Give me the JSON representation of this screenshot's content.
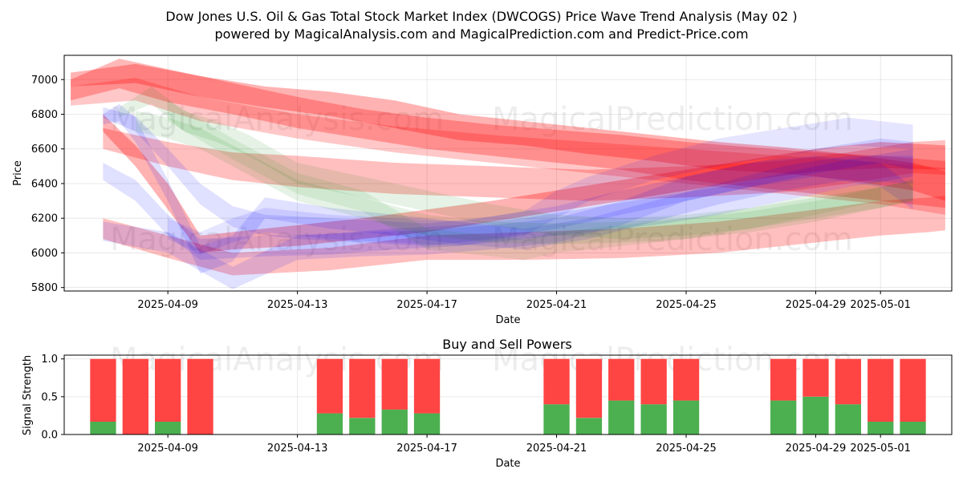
{
  "chart_data": [
    {
      "type": "area",
      "title": "Dow Jones U.S. Oil & Gas Total Stock Market Index (DWCOGS) Price Wave Trend Analysis (May 02 )",
      "subtitle": "powered by MagicalAnalysis.com and MagicalPrediction.com and Predict-Price.com",
      "xlabel": "Date",
      "ylabel": "Price",
      "x_tick_labels": [
        "2025-04-09",
        "2025-04-13",
        "2025-04-17",
        "2025-04-21",
        "2025-04-25",
        "2025-04-29",
        "2025-05-01"
      ],
      "x_tick_day_offsets": [
        2,
        6,
        10,
        14,
        18,
        22,
        24
      ],
      "xlim_days": [
        -1.2,
        26.2
      ],
      "ylim": [
        5780,
        7140
      ],
      "y_ticks": [
        5800,
        6000,
        6200,
        6400,
        6600,
        6800,
        7000
      ],
      "watermarks": [
        "MagicalAnalysis.com",
        "MagicalPrediction.com",
        "MagicalAnalysis.com",
        "MagicalPrediction.com"
      ],
      "series": [
        {
          "name": "red-1",
          "color": "#ff0000",
          "opacity": 0.28,
          "x": [
            -1,
            0.5,
            2,
            4,
            6,
            8,
            10,
            12,
            14,
            16,
            18,
            20,
            22,
            24,
            26
          ],
          "lower": [
            6880,
            6950,
            6870,
            6800,
            6720,
            6660,
            6600,
            6560,
            6520,
            6480,
            6420,
            6380,
            6340,
            6300,
            6260
          ],
          "upper": [
            7000,
            7120,
            7060,
            6980,
            6900,
            6830,
            6780,
            6740,
            6710,
            6680,
            6640,
            6610,
            6580,
            6560,
            6530
          ]
        },
        {
          "name": "red-2",
          "color": "#ff0000",
          "opacity": 0.3,
          "x": [
            -1,
            1,
            3,
            5,
            7,
            9,
            11,
            13,
            15,
            17,
            19,
            21,
            23,
            25,
            26
          ],
          "lower": [
            6960,
            6980,
            6900,
            6840,
            6790,
            6720,
            6650,
            6620,
            6570,
            6530,
            6480,
            6460,
            6420,
            6360,
            6300
          ],
          "upper": [
            7040,
            7090,
            7020,
            6960,
            6930,
            6880,
            6800,
            6760,
            6720,
            6680,
            6640,
            6610,
            6570,
            6520,
            6470
          ]
        },
        {
          "name": "red-3",
          "color": "#ff0000",
          "opacity": 0.22,
          "x": [
            -1,
            1,
            3,
            6,
            9,
            12,
            15,
            18,
            21,
            24,
            26
          ],
          "lower": [
            6850,
            6880,
            6760,
            6660,
            6580,
            6520,
            6460,
            6400,
            6340,
            6280,
            6220
          ],
          "upper": [
            6960,
            7010,
            6900,
            6800,
            6730,
            6680,
            6640,
            6600,
            6560,
            6520,
            6490
          ]
        },
        {
          "name": "red-4",
          "color": "#ff0000",
          "opacity": 0.25,
          "x": [
            0,
            2,
            4,
            6,
            9,
            12,
            15,
            18,
            21,
            23,
            25,
            26
          ],
          "lower": [
            6600,
            6500,
            6420,
            6380,
            6340,
            6320,
            6300,
            6320,
            6350,
            6400,
            6460,
            6450
          ],
          "upper": [
            6720,
            6640,
            6580,
            6560,
            6520,
            6500,
            6480,
            6500,
            6530,
            6580,
            6640,
            6650
          ]
        },
        {
          "name": "red-5",
          "color": "#ff0000",
          "opacity": 0.3,
          "x": [
            0,
            1,
            2,
            3,
            4,
            6,
            8,
            10,
            12,
            14,
            16,
            18,
            20,
            22,
            24,
            26
          ],
          "lower": [
            6700,
            6500,
            6250,
            6000,
            6020,
            6040,
            6080,
            6120,
            6180,
            6240,
            6300,
            6360,
            6420,
            6470,
            6490,
            6480
          ],
          "upper": [
            6800,
            6620,
            6400,
            6100,
            6120,
            6160,
            6200,
            6250,
            6300,
            6360,
            6420,
            6480,
            6540,
            6600,
            6640,
            6620
          ]
        },
        {
          "name": "red-6",
          "color": "#ff0000",
          "opacity": 0.25,
          "x": [
            0,
            2,
            4,
            7,
            10,
            13,
            16,
            19,
            22,
            24,
            25.5,
            26
          ],
          "lower": [
            6080,
            5970,
            5870,
            5900,
            5960,
            5960,
            5970,
            6000,
            6060,
            6100,
            6120,
            6130
          ],
          "upper": [
            6200,
            6100,
            6000,
            6030,
            6100,
            6120,
            6140,
            6180,
            6250,
            6300,
            6320,
            6330
          ]
        },
        {
          "name": "blue-1",
          "color": "#0000ff",
          "opacity": 0.12,
          "x": [
            0,
            0.5,
            1,
            2,
            3,
            4,
            5,
            7,
            9,
            11,
            13,
            15,
            17,
            19,
            21,
            23,
            24,
            25
          ],
          "lower": [
            6740,
            6760,
            6640,
            6300,
            5880,
            5950,
            6200,
            6140,
            6100,
            6050,
            6020,
            6080,
            6180,
            6280,
            6360,
            6420,
            6410,
            6400
          ],
          "upper": [
            6800,
            6860,
            6780,
            6420,
            6040,
            6100,
            6320,
            6260,
            6220,
            6180,
            6140,
            6200,
            6300,
            6400,
            6500,
            6560,
            6560,
            6560
          ]
        },
        {
          "name": "blue-2",
          "color": "#0000ff",
          "opacity": 0.12,
          "x": [
            0,
            1,
            2,
            3,
            5,
            7,
            9,
            11,
            13,
            15,
            17,
            19,
            21,
            23,
            25
          ],
          "lower": [
            6420,
            6300,
            6100,
            5960,
            5980,
            5990,
            6020,
            6040,
            6080,
            6120,
            6160,
            6220,
            6300,
            6380,
            6440
          ],
          "upper": [
            6520,
            6420,
            6220,
            6080,
            6100,
            6110,
            6140,
            6160,
            6200,
            6260,
            6320,
            6380,
            6460,
            6540,
            6600
          ]
        },
        {
          "name": "blue-3",
          "color": "#0000ff",
          "opacity": 0.12,
          "x": [
            0,
            2,
            4,
            6,
            8,
            10,
            12,
            14,
            16,
            18,
            20,
            22,
            24,
            25
          ],
          "lower": [
            6070,
            6000,
            5790,
            5960,
            5980,
            5990,
            6020,
            6060,
            6160,
            6300,
            6380,
            6440,
            6380,
            6250
          ],
          "upper": [
            6180,
            6120,
            5920,
            6100,
            6120,
            6130,
            6160,
            6200,
            6300,
            6440,
            6520,
            6560,
            6520,
            6380
          ]
        },
        {
          "name": "blue-4",
          "color": "#0000ff",
          "opacity": 0.12,
          "x": [
            0,
            1,
            2,
            3,
            4,
            5,
            6,
            8,
            10,
            12,
            14,
            16,
            18,
            20,
            22,
            24,
            25
          ],
          "lower": [
            6780,
            6700,
            6500,
            6280,
            6150,
            6100,
            6080,
            6060,
            6040,
            6080,
            6140,
            6220,
            6300,
            6380,
            6460,
            6520,
            6480
          ],
          "upper": [
            6840,
            6790,
            6600,
            6400,
            6270,
            6220,
            6210,
            6190,
            6170,
            6210,
            6270,
            6360,
            6440,
            6520,
            6600,
            6660,
            6640
          ]
        },
        {
          "name": "blue-5",
          "color": "#0000ff",
          "opacity": 0.1,
          "x": [
            2,
            3,
            4,
            5,
            7,
            9,
            11,
            13,
            14,
            15,
            17,
            19,
            21,
            23,
            25
          ],
          "lower": [
            6080,
            5990,
            6060,
            6120,
            6080,
            6060,
            6040,
            6100,
            6200,
            6300,
            6420,
            6500,
            6560,
            6620,
            6600
          ],
          "upper": [
            6200,
            6120,
            6200,
            6260,
            6220,
            6200,
            6180,
            6240,
            6360,
            6440,
            6560,
            6660,
            6720,
            6780,
            6740
          ]
        },
        {
          "name": "green-1",
          "color": "#008000",
          "opacity": 0.1,
          "x": [
            0.5,
            1.5,
            2.5,
            3.5,
            4.5,
            6,
            8,
            10,
            12,
            14,
            16,
            18,
            20,
            22,
            24,
            25
          ],
          "lower": [
            6780,
            6860,
            6700,
            6640,
            6560,
            6400,
            6320,
            6240,
            6160,
            6100,
            6080,
            6100,
            6140,
            6200,
            6260,
            6300
          ],
          "upper": [
            6840,
            6960,
            6820,
            6760,
            6680,
            6520,
            6440,
            6360,
            6280,
            6220,
            6200,
            6220,
            6260,
            6320,
            6380,
            6420
          ]
        },
        {
          "name": "green-2",
          "color": "#008000",
          "opacity": 0.1,
          "x": [
            1,
            2,
            3,
            4,
            6,
            8,
            10,
            12,
            14,
            16,
            18,
            20,
            22,
            24,
            25
          ],
          "lower": [
            6700,
            6660,
            6600,
            6500,
            6300,
            6200,
            6100,
            6060,
            6050,
            6060,
            6080,
            6120,
            6180,
            6260,
            6300
          ],
          "upper": [
            6820,
            6780,
            6720,
            6620,
            6420,
            6320,
            6220,
            6180,
            6170,
            6180,
            6200,
            6240,
            6300,
            6380,
            6420
          ]
        },
        {
          "name": "green-3",
          "color": "#008000",
          "opacity": 0.09,
          "x": [
            2,
            4,
            6,
            8,
            10,
            12,
            13,
            14,
            16,
            18,
            20,
            22,
            24
          ],
          "lower": [
            6760,
            6540,
            6340,
            6240,
            6020,
            5980,
            5960,
            6000,
            6040,
            6080,
            6140,
            6220,
            6300
          ],
          "upper": [
            6880,
            6660,
            6460,
            6360,
            6140,
            6100,
            6080,
            6120,
            6160,
            6200,
            6260,
            6340,
            6420
          ]
        }
      ]
    },
    {
      "type": "bar",
      "title": "Buy and Sell Powers",
      "xlabel": "Date",
      "ylabel": "Signal Strength",
      "ylim": [
        0,
        1.05
      ],
      "y_ticks": [
        0.0,
        0.5,
        1.0
      ],
      "y_tick_labels": [
        "0.0",
        "0.5",
        "1.0"
      ],
      "x_tick_labels": [
        "2025-04-09",
        "2025-04-13",
        "2025-04-17",
        "2025-04-21",
        "2025-04-25",
        "2025-04-29",
        "2025-05-01"
      ],
      "x_tick_day_offsets": [
        2,
        6,
        10,
        14,
        18,
        22,
        24
      ],
      "xlim_days": [
        -1.2,
        26.2
      ],
      "bar_day_offsets": [
        0,
        1,
        2,
        3,
        7,
        8,
        9,
        10,
        14,
        15,
        16,
        17,
        18,
        21,
        22,
        23,
        24,
        25
      ],
      "series": [
        {
          "name": "Buy",
          "color": "#4caf50",
          "values": [
            0.17,
            0.0,
            0.17,
            0.0,
            0.28,
            0.22,
            0.33,
            0.28,
            0.4,
            0.22,
            0.45,
            0.4,
            0.45,
            0.45,
            0.5,
            0.4,
            0.17,
            0.17
          ]
        },
        {
          "name": "Sell",
          "color": "#ff4444",
          "values": [
            0.83,
            1.0,
            0.83,
            1.0,
            0.72,
            0.78,
            0.67,
            0.72,
            0.6,
            0.78,
            0.55,
            0.6,
            0.55,
            0.55,
            0.5,
            0.6,
            0.83,
            0.83
          ]
        }
      ]
    }
  ]
}
